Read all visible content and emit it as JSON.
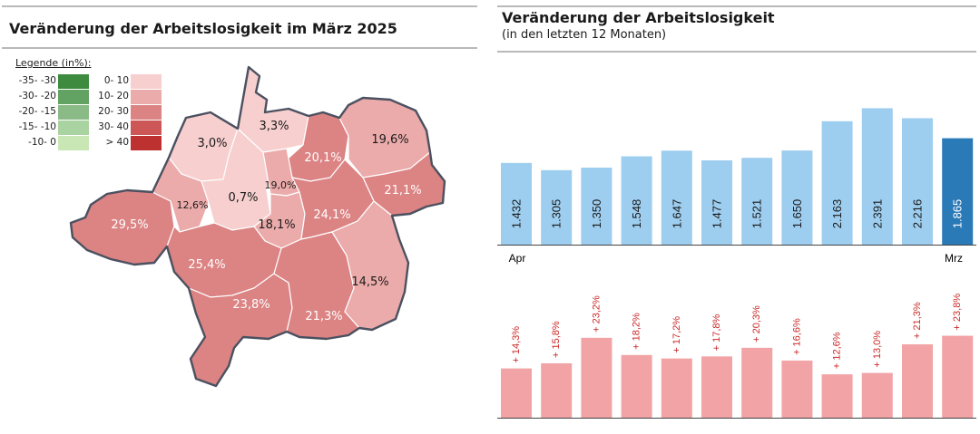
{
  "left_panel": {
    "title": "Veränderung der Arbeitslosigkeit im März 2025",
    "legend": {
      "title": "Legende (in%):",
      "decrease": [
        {
          "label": "-35- -30",
          "color": "#3e8a3e"
        },
        {
          "label": "-30- -20",
          "color": "#62a262"
        },
        {
          "label": "-20- -15",
          "color": "#8aba86"
        },
        {
          "label": "-15- -10",
          "color": "#a9d3a0"
        },
        {
          "label": "-10- 0",
          "color": "#c8e7b5"
        }
      ],
      "increase": [
        {
          "label": "0- 10",
          "color": "#f7cfcf"
        },
        {
          "label": "10- 20",
          "color": "#ecabab"
        },
        {
          "label": "20- 30",
          "color": "#dc8383"
        },
        {
          "label": "30- 40",
          "color": "#cd5757"
        },
        {
          "label": "> 40",
          "color": "#bd3131"
        }
      ]
    },
    "map_regions": [
      {
        "name": "region-nordwest",
        "label": "3,0%",
        "value": 3.0
      },
      {
        "name": "region-nord",
        "label": "3,3%",
        "value": 3.3
      },
      {
        "name": "region-nordost-mitte",
        "label": "20,1%",
        "value": 20.1
      },
      {
        "name": "region-nordost",
        "label": "19,6%",
        "value": 19.6
      },
      {
        "name": "region-ost",
        "label": "21,1%",
        "value": 21.1
      },
      {
        "name": "region-west",
        "label": "29,5%",
        "value": 29.5
      },
      {
        "name": "region-westmitte",
        "label": "12,6%",
        "value": 12.6
      },
      {
        "name": "region-zentrum",
        "label": "0,7%",
        "value": 0.7
      },
      {
        "name": "region-zentrum-klein",
        "label": "19,0%",
        "value": 19.0
      },
      {
        "name": "region-zentrum-sued",
        "label": "18,1%",
        "value": 18.1
      },
      {
        "name": "region-mitte-ost",
        "label": "24,1%",
        "value": 24.1
      },
      {
        "name": "region-suedwest",
        "label": "25,4%",
        "value": 25.4
      },
      {
        "name": "region-sued",
        "label": "23,8%",
        "value": 23.8
      },
      {
        "name": "region-suedost",
        "label": "21,3%",
        "value": 21.3
      },
      {
        "name": "region-suedost-rand",
        "label": "14,5%",
        "value": 14.5
      }
    ]
  },
  "right_panel": {
    "title": "Veränderung der Arbeitslosigkeit",
    "subtitle": "(in den letzten 12 Monaten)",
    "x_start_label": "Apr",
    "x_end_label": "Mrz",
    "colors": {
      "bar": "#9dcdef",
      "bar_current": "#2b7ab8",
      "change_bar": "#f2a3a6",
      "change_label": "#cc2a2a"
    }
  },
  "chart_data": [
    {
      "type": "bar",
      "title": "Veränderung der Arbeitslosigkeit",
      "subtitle": "(in den letzten 12 Monaten)",
      "categories": [
        "Apr",
        "",
        "",
        "",
        "",
        "",
        "",
        "",
        "",
        "",
        "",
        "Mrz"
      ],
      "values": [
        1432,
        1305,
        1350,
        1548,
        1647,
        1477,
        1521,
        1650,
        2163,
        2391,
        2216,
        1865
      ],
      "value_labels": [
        "1.432",
        "1.305",
        "1.350",
        "1.548",
        "1.647",
        "1.477",
        "1.521",
        "1.650",
        "2.163",
        "2.391",
        "2.216",
        "1.865"
      ],
      "ylim": [
        0,
        2700
      ],
      "highlight_last": true,
      "grid": false,
      "legend": false
    },
    {
      "type": "bar",
      "values": [
        14.3,
        15.8,
        23.2,
        18.2,
        17.2,
        17.8,
        20.3,
        16.6,
        12.6,
        13.0,
        21.3,
        23.8
      ],
      "value_labels": [
        "+ 14,3%",
        "+ 15,8%",
        "+ 23,2%",
        "+ 18,2%",
        "+ 17,2%",
        "+ 17,8%",
        "+ 20,3%",
        "+ 16,6%",
        "+ 12,6%",
        "+ 13,0%",
        "+ 21,3%",
        "+ 23,8%"
      ],
      "ylim": [
        0,
        25
      ],
      "grid": false,
      "legend": false
    }
  ]
}
